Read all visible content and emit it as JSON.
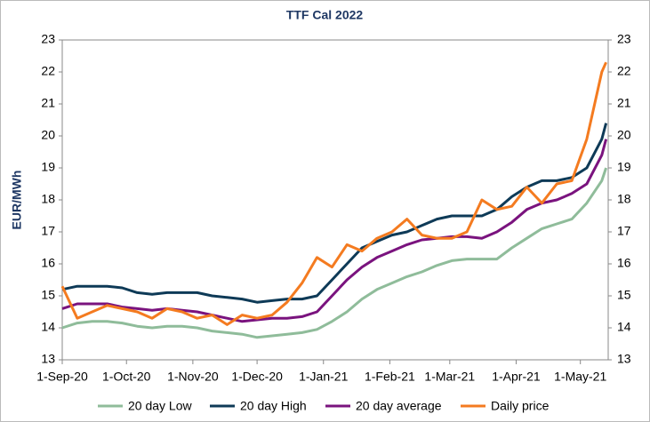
{
  "chart_data": {
    "type": "line",
    "title": "TTF Cal 2022",
    "y_label": "EUR/MWh",
    "x": [
      "2020-09-01",
      "2020-09-08",
      "2020-09-15",
      "2020-09-22",
      "2020-09-29",
      "2020-10-06",
      "2020-10-13",
      "2020-10-20",
      "2020-10-27",
      "2020-11-03",
      "2020-11-10",
      "2020-11-17",
      "2020-11-24",
      "2020-12-01",
      "2020-12-08",
      "2020-12-15",
      "2020-12-22",
      "2020-12-29",
      "2021-01-05",
      "2021-01-12",
      "2021-01-19",
      "2021-01-26",
      "2021-02-02",
      "2021-02-09",
      "2021-02-16",
      "2021-02-23",
      "2021-03-02",
      "2021-03-09",
      "2021-03-16",
      "2021-03-23",
      "2021-03-30",
      "2021-04-06",
      "2021-04-13",
      "2021-04-20",
      "2021-04-27",
      "2021-05-04",
      "2021-05-11",
      "2021-05-13"
    ],
    "series": [
      {
        "name": "20 day Low",
        "color": "#8fbc9a",
        "values": [
          14.0,
          14.15,
          14.2,
          14.2,
          14.15,
          14.05,
          14.0,
          14.05,
          14.05,
          14.0,
          13.9,
          13.85,
          13.8,
          13.7,
          13.75,
          13.8,
          13.85,
          13.95,
          14.2,
          14.5,
          14.9,
          15.2,
          15.4,
          15.6,
          15.75,
          15.95,
          16.1,
          16.15,
          16.15,
          16.15,
          16.5,
          16.8,
          17.1,
          17.25,
          17.4,
          17.9,
          18.6,
          19.0
        ]
      },
      {
        "name": "20 day High",
        "color": "#0e3a57",
        "values": [
          15.2,
          15.3,
          15.3,
          15.3,
          15.25,
          15.1,
          15.05,
          15.1,
          15.1,
          15.1,
          15.0,
          14.95,
          14.9,
          14.8,
          14.85,
          14.9,
          14.9,
          15.0,
          15.5,
          16.0,
          16.5,
          16.7,
          16.9,
          17.0,
          17.2,
          17.4,
          17.5,
          17.5,
          17.5,
          17.7,
          18.1,
          18.4,
          18.6,
          18.6,
          18.7,
          19.0,
          19.9,
          20.4
        ]
      },
      {
        "name": "20 day average",
        "color": "#7a137e",
        "values": [
          14.6,
          14.75,
          14.75,
          14.75,
          14.65,
          14.6,
          14.55,
          14.6,
          14.55,
          14.5,
          14.4,
          14.3,
          14.2,
          14.25,
          14.3,
          14.3,
          14.35,
          14.5,
          15.0,
          15.5,
          15.9,
          16.2,
          16.4,
          16.6,
          16.75,
          16.8,
          16.85,
          16.85,
          16.8,
          17.0,
          17.3,
          17.7,
          17.9,
          18.0,
          18.2,
          18.5,
          19.4,
          19.9
        ]
      },
      {
        "name": "Daily price",
        "color": "#f47b20",
        "values": [
          15.3,
          14.3,
          14.5,
          14.7,
          14.6,
          14.5,
          14.3,
          14.6,
          14.5,
          14.3,
          14.4,
          14.1,
          14.4,
          14.3,
          14.4,
          14.8,
          15.4,
          16.2,
          15.9,
          16.6,
          16.4,
          16.8,
          17.0,
          17.4,
          16.9,
          16.8,
          16.8,
          17.0,
          18.0,
          17.7,
          17.8,
          18.4,
          17.9,
          18.5,
          18.6,
          19.9,
          22.0,
          22.3
        ]
      }
    ],
    "xlim": [
      "2020-09-01",
      "2021-05-14"
    ],
    "xticks": [
      {
        "value": "2020-09-01",
        "label": "1-Sep-20"
      },
      {
        "value": "2020-10-01",
        "label": "1-Oct-20"
      },
      {
        "value": "2020-11-01",
        "label": "1-Nov-20"
      },
      {
        "value": "2020-12-01",
        "label": "1-Dec-20"
      },
      {
        "value": "2021-01-01",
        "label": "1-Jan-21"
      },
      {
        "value": "2021-02-01",
        "label": "1-Feb-21"
      },
      {
        "value": "2021-03-01",
        "label": "1-Mar-21"
      },
      {
        "value": "2021-04-01",
        "label": "1-Apr-21"
      },
      {
        "value": "2021-05-01",
        "label": "1-May-21"
      }
    ],
    "ylim": [
      13,
      23
    ],
    "yticks": [
      13,
      14,
      15,
      16,
      17,
      18,
      19,
      20,
      21,
      22,
      23
    ],
    "grid": false,
    "legend": "bottom"
  }
}
